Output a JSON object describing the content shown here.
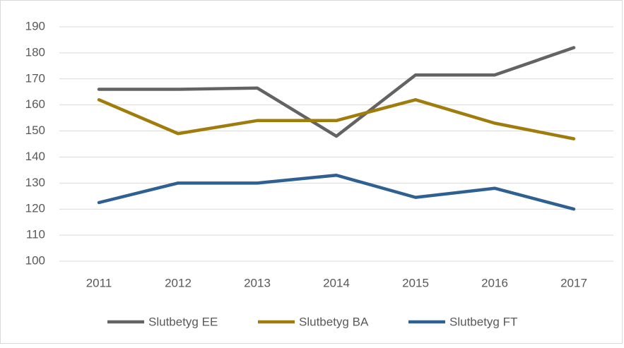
{
  "chart_data": {
    "type": "line",
    "categories": [
      "2011",
      "2012",
      "2013",
      "2014",
      "2015",
      "2016",
      "2017"
    ],
    "series": [
      {
        "name": "Slutbetyg EE",
        "color": "#636363",
        "values": [
          166,
          166,
          166.5,
          148,
          171.5,
          171.5,
          182
        ]
      },
      {
        "name": "Slutbetyg BA",
        "color": "#9f7c0b",
        "values": [
          162,
          149,
          154,
          154,
          162,
          153,
          147
        ]
      },
      {
        "name": "Slutbetyg FT",
        "color": "#2f6092",
        "values": [
          122.5,
          130,
          130,
          133,
          124.5,
          128,
          120
        ]
      }
    ],
    "ylim": [
      100,
      190
    ],
    "yticks": [
      100,
      110,
      120,
      130,
      140,
      150,
      160,
      170,
      180,
      190
    ],
    "grid": true,
    "legend": "bottom"
  }
}
